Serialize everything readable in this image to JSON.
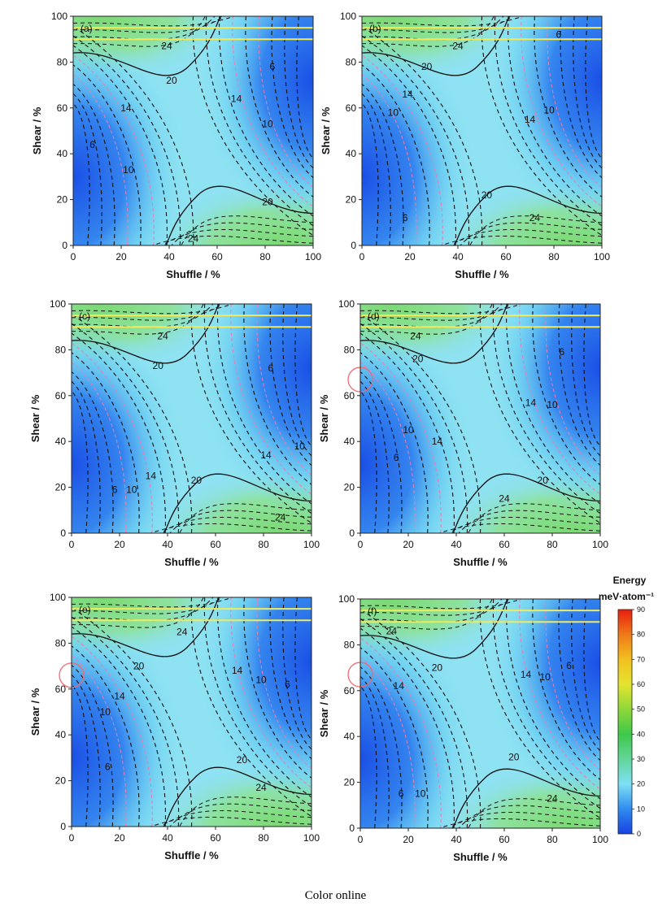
{
  "figure": {
    "caption": "Color online",
    "colors": {
      "low": "#1a4fe6",
      "mid": "#8ee2f2",
      "high": "#8ce27a",
      "contour": "#111111",
      "pink_contour": "#f07ab0",
      "yellow_lines": "#f2ea5a",
      "circle": "#f06a70"
    }
  },
  "chart_data": [
    {
      "panel": "(a)",
      "type": "contour",
      "xlabel": "Shuffle / %",
      "ylabel": "Shear / %",
      "xlim": [
        0,
        100
      ],
      "ylim": [
        0,
        100
      ],
      "xticks": [
        "0",
        "20",
        "40",
        "60",
        "80",
        "100"
      ],
      "yticks": [
        "0",
        "20",
        "40",
        "60",
        "80",
        "100"
      ],
      "horizontal_lines_y": [
        90,
        95
      ],
      "contour_labels": [
        {
          "text": "24",
          "x": 39,
          "y": 87
        },
        {
          "text": "20",
          "x": 41,
          "y": 72
        },
        {
          "text": "14",
          "x": 22,
          "y": 60
        },
        {
          "text": "6",
          "x": 8,
          "y": 44
        },
        {
          "text": "10",
          "x": 23,
          "y": 33
        },
        {
          "text": "6",
          "x": 83,
          "y": 78
        },
        {
          "text": "14",
          "x": 68,
          "y": 64
        },
        {
          "text": "10",
          "x": 81,
          "y": 53
        },
        {
          "text": "20",
          "x": 81,
          "y": 19
        },
        {
          "text": "24",
          "x": 50,
          "y": 3
        }
      ],
      "circles": []
    },
    {
      "panel": "(b)",
      "type": "contour",
      "xlabel": "Shuffle / %",
      "ylabel": "Shear / %",
      "xlim": [
        0,
        100
      ],
      "ylim": [
        0,
        100
      ],
      "xticks": [
        "0",
        "20",
        "40",
        "60",
        "80",
        "100"
      ],
      "yticks": [
        "0",
        "20",
        "40",
        "60",
        "80",
        "100"
      ],
      "horizontal_lines_y": [
        90,
        95
      ],
      "contour_labels": [
        {
          "text": "24",
          "x": 40,
          "y": 87
        },
        {
          "text": "6",
          "x": 82,
          "y": 92
        },
        {
          "text": "20",
          "x": 27,
          "y": 78
        },
        {
          "text": "14",
          "x": 19,
          "y": 66
        },
        {
          "text": "10",
          "x": 13,
          "y": 58
        },
        {
          "text": "10",
          "x": 78,
          "y": 59
        },
        {
          "text": "14",
          "x": 70,
          "y": 55
        },
        {
          "text": "20",
          "x": 52,
          "y": 22
        },
        {
          "text": "6",
          "x": 18,
          "y": 12
        },
        {
          "text": "24",
          "x": 72,
          "y": 12
        }
      ],
      "circles": []
    },
    {
      "panel": "(c)",
      "type": "contour",
      "xlabel": "Shuffle / %",
      "ylabel": "Shear / %",
      "xlim": [
        0,
        100
      ],
      "ylim": [
        0,
        100
      ],
      "xticks": [
        "0",
        "20",
        "40",
        "60",
        "80",
        "100"
      ],
      "yticks": [
        "0",
        "20",
        "40",
        "60",
        "80",
        "100"
      ],
      "horizontal_lines_y": [
        90,
        95
      ],
      "contour_labels": [
        {
          "text": "24",
          "x": 38,
          "y": 86
        },
        {
          "text": "20",
          "x": 36,
          "y": 73
        },
        {
          "text": "6",
          "x": 83,
          "y": 72
        },
        {
          "text": "10",
          "x": 95,
          "y": 38
        },
        {
          "text": "14",
          "x": 81,
          "y": 34
        },
        {
          "text": "14",
          "x": 33,
          "y": 25
        },
        {
          "text": "20",
          "x": 52,
          "y": 23
        },
        {
          "text": "6",
          "x": 18,
          "y": 19
        },
        {
          "text": "10",
          "x": 25,
          "y": 19
        },
        {
          "text": "24",
          "x": 87,
          "y": 7
        }
      ],
      "circles": []
    },
    {
      "panel": "(d)",
      "type": "contour",
      "xlabel": "Shuffle / %",
      "ylabel": "Shear / %",
      "xlim": [
        0,
        100
      ],
      "ylim": [
        0,
        100
      ],
      "xticks": [
        "0",
        "20",
        "40",
        "60",
        "80",
        "100"
      ],
      "yticks": [
        "0",
        "20",
        "40",
        "60",
        "80",
        "100"
      ],
      "horizontal_lines_y": [
        90,
        95
      ],
      "contour_labels": [
        {
          "text": "24",
          "x": 23,
          "y": 86
        },
        {
          "text": "20",
          "x": 24,
          "y": 76
        },
        {
          "text": "6",
          "x": 84,
          "y": 79
        },
        {
          "text": "14",
          "x": 71,
          "y": 57
        },
        {
          "text": "10",
          "x": 80,
          "y": 56
        },
        {
          "text": "10",
          "x": 20,
          "y": 45
        },
        {
          "text": "14",
          "x": 32,
          "y": 40
        },
        {
          "text": "6",
          "x": 15,
          "y": 33
        },
        {
          "text": "20",
          "x": 76,
          "y": 23
        },
        {
          "text": "24",
          "x": 60,
          "y": 15
        }
      ],
      "circles": [
        {
          "x": 0,
          "y": 67
        }
      ]
    },
    {
      "panel": "(e)",
      "type": "contour",
      "xlabel": "Shuffle / %",
      "ylabel": "Shear / %",
      "xlim": [
        0,
        100
      ],
      "ylim": [
        0,
        100
      ],
      "xticks": [
        "0",
        "20",
        "40",
        "60",
        "80",
        "100"
      ],
      "yticks": [
        "0",
        "20",
        "40",
        "60",
        "80",
        "100"
      ],
      "horizontal_lines_y": [
        90,
        95
      ],
      "contour_labels": [
        {
          "text": "24",
          "x": 46,
          "y": 85
        },
        {
          "text": "20",
          "x": 28,
          "y": 70
        },
        {
          "text": "14",
          "x": 69,
          "y": 68
        },
        {
          "text": "10",
          "x": 79,
          "y": 64
        },
        {
          "text": "6",
          "x": 90,
          "y": 62
        },
        {
          "text": "14",
          "x": 20,
          "y": 57
        },
        {
          "text": "10",
          "x": 14,
          "y": 50
        },
        {
          "text": "6",
          "x": 15,
          "y": 26
        },
        {
          "text": "20",
          "x": 71,
          "y": 29
        },
        {
          "text": "24",
          "x": 79,
          "y": 17
        }
      ],
      "circles": [
        {
          "x": 0,
          "y": 66
        }
      ]
    },
    {
      "panel": "(f)",
      "type": "contour",
      "xlabel": "Shuffle / %",
      "ylabel": "Shear / %",
      "xlim": [
        0,
        100
      ],
      "ylim": [
        0,
        100
      ],
      "xticks": [
        "0",
        "20",
        "40",
        "60",
        "80",
        "100"
      ],
      "yticks": [
        "0",
        "20",
        "40",
        "60",
        "80",
        "100"
      ],
      "horizontal_lines_y": [
        90,
        95
      ],
      "contour_labels": [
        {
          "text": "24",
          "x": 13,
          "y": 86
        },
        {
          "text": "20",
          "x": 32,
          "y": 70
        },
        {
          "text": "14",
          "x": 16,
          "y": 62
        },
        {
          "text": "14",
          "x": 69,
          "y": 67
        },
        {
          "text": "10",
          "x": 77,
          "y": 66
        },
        {
          "text": "6",
          "x": 87,
          "y": 71
        },
        {
          "text": "20",
          "x": 64,
          "y": 31
        },
        {
          "text": "6",
          "x": 17,
          "y": 15
        },
        {
          "text": "10",
          "x": 25,
          "y": 15
        },
        {
          "text": "24",
          "x": 80,
          "y": 13
        }
      ],
      "circles": [
        {
          "x": 0,
          "y": 67
        }
      ]
    }
  ],
  "colorbar": {
    "title": "Energy",
    "unit": "meV·atom⁻¹",
    "range": [
      0,
      90
    ],
    "ticks": [
      "90",
      "80",
      "70",
      "60",
      "50",
      "40",
      "30",
      "20",
      "10",
      "0"
    ],
    "stops": [
      {
        "value": 0,
        "color": "#1842e0"
      },
      {
        "value": 10,
        "color": "#2f8cf0"
      },
      {
        "value": 20,
        "color": "#7fe0f4"
      },
      {
        "value": 30,
        "color": "#62d69a"
      },
      {
        "value": 40,
        "color": "#3ec84a"
      },
      {
        "value": 50,
        "color": "#8fd838"
      },
      {
        "value": 60,
        "color": "#e4e430"
      },
      {
        "value": 70,
        "color": "#f2c020"
      },
      {
        "value": 80,
        "color": "#f07a18"
      },
      {
        "value": 90,
        "color": "#e81e10"
      }
    ]
  }
}
